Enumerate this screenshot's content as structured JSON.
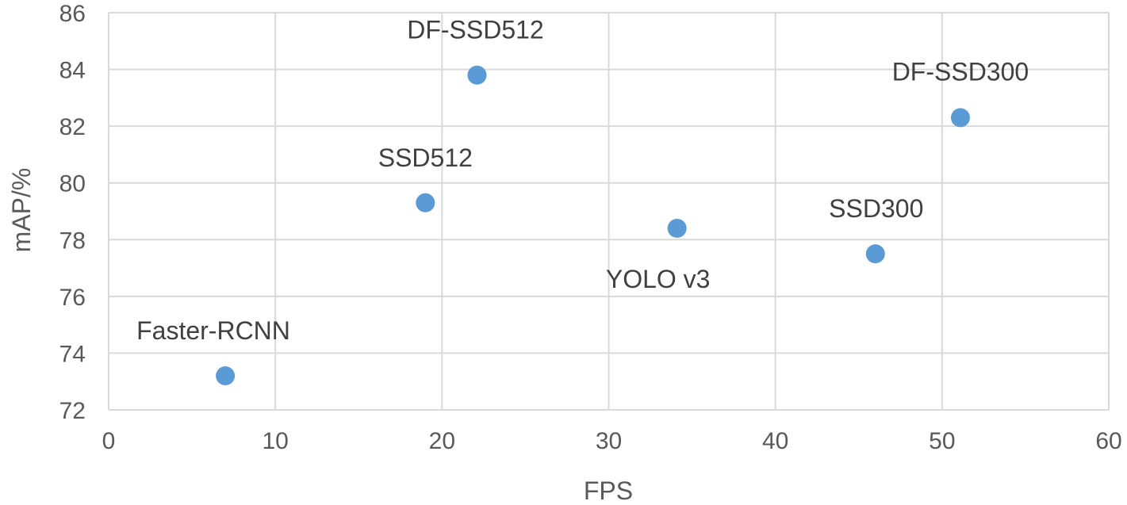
{
  "chart_data": {
    "type": "scatter",
    "title": "",
    "xlabel": "FPS",
    "ylabel": "mAP/%",
    "xlim": [
      0,
      60
    ],
    "ylim": [
      72,
      86
    ],
    "xticks": [
      0,
      10,
      20,
      30,
      40,
      50,
      60
    ],
    "yticks": [
      72,
      74,
      76,
      78,
      80,
      82,
      84,
      86
    ],
    "grid": true,
    "legend": "none",
    "marker_color": "#5b9bd5",
    "points": [
      {
        "label": "Faster-RCNN",
        "x": 7,
        "y": 73.2
      },
      {
        "label": "SSD512",
        "x": 19,
        "y": 79.3
      },
      {
        "label": "DF-SSD512",
        "x": 22.1,
        "y": 83.8
      },
      {
        "label": "YOLO v3",
        "x": 34.1,
        "y": 78.4
      },
      {
        "label": "SSD300",
        "x": 46,
        "y": 77.5
      },
      {
        "label": "DF-SSD300",
        "x": 51.1,
        "y": 82.3
      }
    ]
  }
}
